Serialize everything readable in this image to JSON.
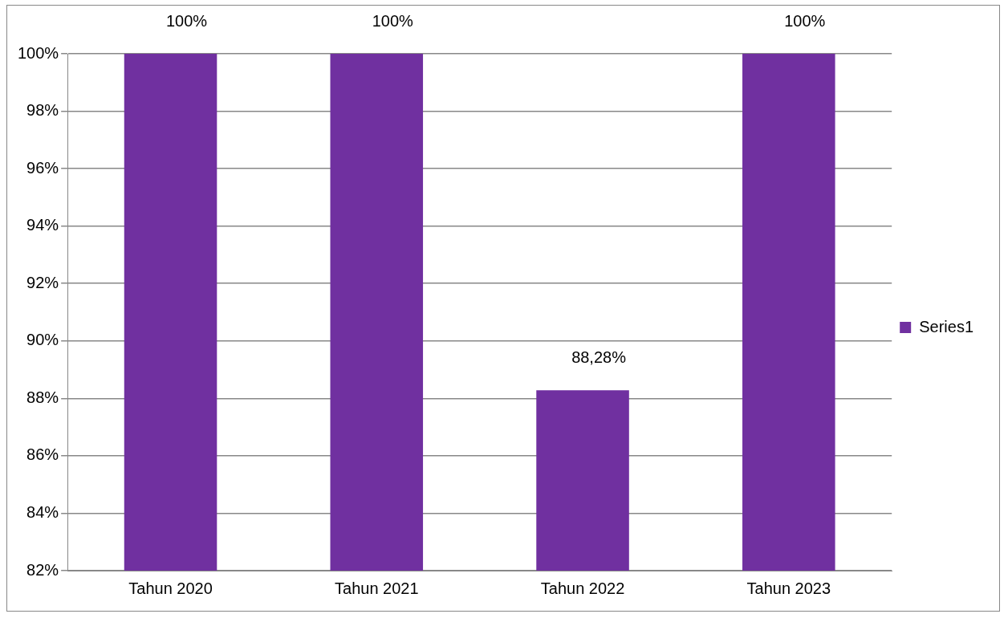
{
  "chart_data": {
    "type": "bar",
    "categories": [
      "Tahun 2020",
      "Tahun 2021",
      "Tahun 2022",
      "Tahun 2023"
    ],
    "series": [
      {
        "name": "Series1",
        "color": "#7030a0",
        "values": [
          100,
          100,
          88.28,
          100
        ],
        "value_labels": [
          "100%",
          "100%",
          "88,28%",
          "100%"
        ]
      }
    ],
    "ylim": [
      82,
      100
    ],
    "yticks": [
      {
        "value": 82,
        "label": "82%"
      },
      {
        "value": 84,
        "label": "84%"
      },
      {
        "value": 86,
        "label": "86%"
      },
      {
        "value": 88,
        "label": "88%"
      },
      {
        "value": 90,
        "label": "90%"
      },
      {
        "value": 92,
        "label": "92%"
      },
      {
        "value": 94,
        "label": "94%"
      },
      {
        "value": 96,
        "label": "96%"
      },
      {
        "value": 98,
        "label": "98%"
      },
      {
        "value": 100,
        "label": "100%"
      }
    ],
    "grid": "y",
    "legend": "right"
  }
}
